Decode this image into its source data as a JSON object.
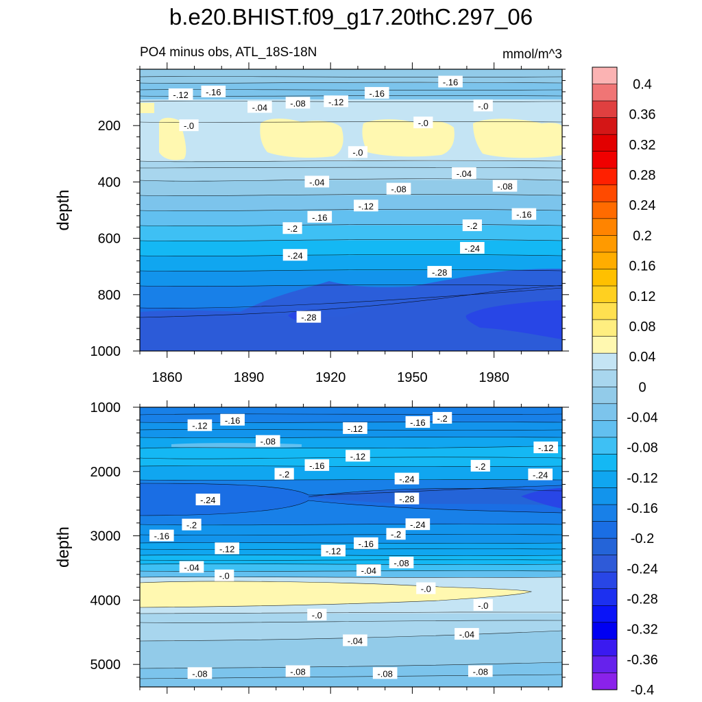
{
  "title": "b.e20.BHIST.f09_g17.20thC.297_06",
  "subtitle_left": "PO4 minus obs, ATL_18S-18N",
  "subtitle_right": "mmol/m^3",
  "chart_data": [
    {
      "type": "heatmap",
      "panel": "upper",
      "xlabel": "",
      "ylabel": "depth",
      "xlim": [
        1850,
        2005
      ],
      "ylim": [
        1000,
        0
      ],
      "x_ticks": [
        1860,
        1890,
        1920,
        1950,
        1980
      ],
      "y_ticks": [
        200,
        400,
        600,
        800,
        1000
      ],
      "grid": false,
      "contour_labels": [
        {
          "text": "-.12",
          "x": 1865,
          "y": 90
        },
        {
          "text": "-.16",
          "x": 1877,
          "y": 80
        },
        {
          "text": "-.04",
          "x": 1894,
          "y": 135
        },
        {
          "text": "-.08",
          "x": 1908,
          "y": 120
        },
        {
          "text": "-.12",
          "x": 1922,
          "y": 115
        },
        {
          "text": "-.16",
          "x": 1937,
          "y": 85
        },
        {
          "text": "-.16",
          "x": 1964,
          "y": 45
        },
        {
          "text": "-.0",
          "x": 1976,
          "y": 130
        },
        {
          "text": "-.0",
          "x": 1868,
          "y": 200
        },
        {
          "text": "-.0",
          "x": 1954,
          "y": 190
        },
        {
          "text": "-.0",
          "x": 1930,
          "y": 295
        },
        {
          "text": "-.04",
          "x": 1915,
          "y": 400
        },
        {
          "text": "-.04",
          "x": 1969,
          "y": 370
        },
        {
          "text": "-.08",
          "x": 1945,
          "y": 425
        },
        {
          "text": "-.08",
          "x": 1984,
          "y": 415
        },
        {
          "text": "-.12",
          "x": 1933,
          "y": 485
        },
        {
          "text": "-.16",
          "x": 1916,
          "y": 525
        },
        {
          "text": "-.16",
          "x": 1991,
          "y": 515
        },
        {
          "text": "-.2",
          "x": 1906,
          "y": 565
        },
        {
          "text": "-.2",
          "x": 1972,
          "y": 555
        },
        {
          "text": "-.24",
          "x": 1907,
          "y": 660
        },
        {
          "text": "-.24",
          "x": 1972,
          "y": 635
        },
        {
          "text": "-.28",
          "x": 1960,
          "y": 720
        },
        {
          "text": "-.28",
          "x": 1912,
          "y": 880
        }
      ]
    },
    {
      "type": "heatmap",
      "panel": "lower",
      "xlabel": "",
      "ylabel": "depth",
      "xlim": [
        1850,
        2005
      ],
      "ylim": [
        5350,
        1000
      ],
      "y_ticks": [
        1000,
        2000,
        3000,
        4000,
        5000
      ],
      "grid": false,
      "contour_labels": [
        {
          "text": "-.12",
          "x": 1872,
          "y": 1285
        },
        {
          "text": "-.16",
          "x": 1884,
          "y": 1200
        },
        {
          "text": "-.08",
          "x": 1897,
          "y": 1530
        },
        {
          "text": "-.12",
          "x": 1929,
          "y": 1330
        },
        {
          "text": "-.16",
          "x": 1952,
          "y": 1235
        },
        {
          "text": "-.2",
          "x": 1961,
          "y": 1170
        },
        {
          "text": "-.12",
          "x": 1999,
          "y": 1630
        },
        {
          "text": "-.12",
          "x": 1930,
          "y": 1760
        },
        {
          "text": "-.16",
          "x": 1915,
          "y": 1905
        },
        {
          "text": "-.2",
          "x": 1903,
          "y": 2040
        },
        {
          "text": "-.2",
          "x": 1975,
          "y": 1915
        },
        {
          "text": "-.24",
          "x": 1997,
          "y": 2050
        },
        {
          "text": "-.24",
          "x": 1948,
          "y": 2115
        },
        {
          "text": "-.28",
          "x": 1948,
          "y": 2425
        },
        {
          "text": "-.24",
          "x": 1875,
          "y": 2440
        },
        {
          "text": "-.2",
          "x": 1869,
          "y": 2830
        },
        {
          "text": "-.16",
          "x": 1858,
          "y": 3000
        },
        {
          "text": "-.12",
          "x": 1882,
          "y": 3200
        },
        {
          "text": "-.12",
          "x": 1921,
          "y": 3235
        },
        {
          "text": "-.16",
          "x": 1933,
          "y": 3120
        },
        {
          "text": "-.2",
          "x": 1944,
          "y": 2975
        },
        {
          "text": "-.24",
          "x": 1952,
          "y": 2825
        },
        {
          "text": "-.04",
          "x": 1869,
          "y": 3490
        },
        {
          "text": "-.08",
          "x": 1946,
          "y": 3420
        },
        {
          "text": "-.04",
          "x": 1934,
          "y": 3540
        },
        {
          "text": "-.0",
          "x": 1881,
          "y": 3620
        },
        {
          "text": "-.0",
          "x": 1955,
          "y": 3820
        },
        {
          "text": "-.0",
          "x": 1976,
          "y": 4080
        },
        {
          "text": "-.0",
          "x": 1915,
          "y": 4230
        },
        {
          "text": "-.04",
          "x": 1929,
          "y": 4630
        },
        {
          "text": "-.04",
          "x": 1970,
          "y": 4530
        },
        {
          "text": "-.08",
          "x": 1872,
          "y": 5140
        },
        {
          "text": "-.08",
          "x": 1908,
          "y": 5110
        },
        {
          "text": "-.08",
          "x": 1940,
          "y": 5140
        },
        {
          "text": "-.08",
          "x": 1975,
          "y": 5110
        }
      ]
    }
  ],
  "colorbar": {
    "labels": [
      "0.4",
      "0.36",
      "0.32",
      "0.28",
      "0.24",
      "0.2",
      "0.16",
      "0.12",
      "0.08",
      "0.04",
      "0",
      "-0.04",
      "-0.08",
      "-0.12",
      "-0.16",
      "-0.2",
      "-0.24",
      "-0.28",
      "-0.32",
      "-0.36",
      "-0.4"
    ],
    "colors": [
      "#fbb3b3",
      "#f07575",
      "#e04040",
      "#d41616",
      "#e20000",
      "#f00000",
      "#ff2000",
      "#ff4a00",
      "#ff6b00",
      "#ff8400",
      "#ff9a00",
      "#ffad00",
      "#ffc000",
      "#ffd020",
      "#ffe050",
      "#ffee80",
      "#fff8b0",
      "#c4e4f4",
      "#a8d6ee",
      "#92cbe9",
      "#7cc4ec",
      "#62c0f0",
      "#3ec0f4",
      "#14b8f4",
      "#10a6f0",
      "#1294ec",
      "#1880e8",
      "#1a6ee4",
      "#2464d8",
      "#2e5ad8",
      "#2846e6",
      "#1c30f0",
      "#0a14f8",
      "#0000f2",
      "#3a1af0",
      "#6622ec",
      "#8a22ea"
    ]
  }
}
